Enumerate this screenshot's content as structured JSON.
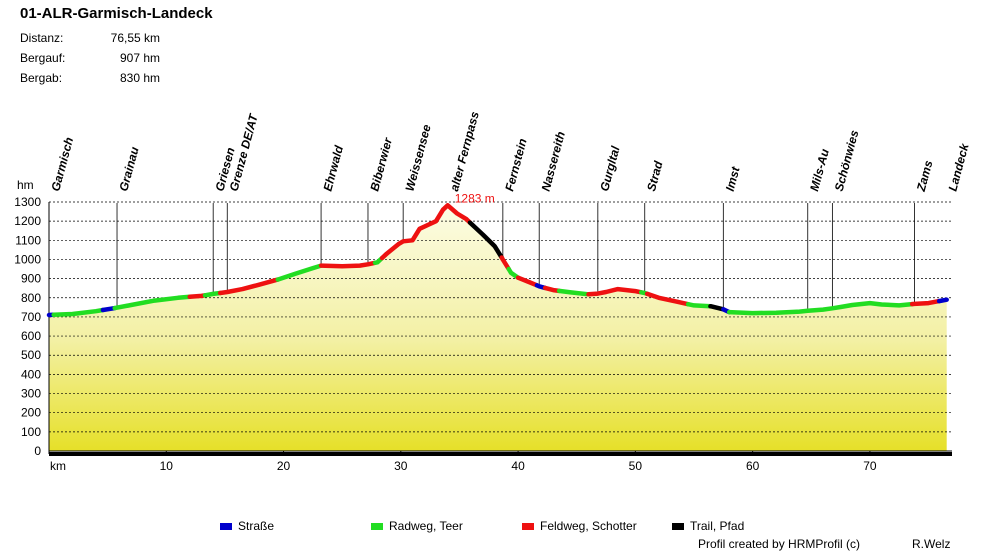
{
  "title": "01-ALR-Garmisch-Landeck",
  "stats": [
    {
      "label": "Distanz:",
      "value": "76,55 km"
    },
    {
      "label": "Bergauf:",
      "value": "907 hm"
    },
    {
      "label": "Bergab:",
      "value": "830 hm"
    }
  ],
  "legend": [
    {
      "label": "Straße",
      "color": "#0000cc"
    },
    {
      "label": "Radweg, Teer",
      "color": "#22dd22"
    },
    {
      "label": "Feldweg, Schotter",
      "color": "#ee1111"
    },
    {
      "label": "Trail, Pfad",
      "color": "#000000"
    }
  ],
  "credit": "Profil created by HRMProfil (c)",
  "author": "R.Welz",
  "chart_data": {
    "type": "area",
    "title": "",
    "xlabel": "km",
    "ylabel": "hm",
    "xlim": [
      0,
      77
    ],
    "ylim": [
      0,
      1300
    ],
    "x_ticks": [
      10,
      20,
      30,
      40,
      50,
      60,
      70
    ],
    "y_ticks": [
      0,
      100,
      200,
      300,
      400,
      500,
      600,
      700,
      800,
      900,
      1000,
      1100,
      1200,
      1300
    ],
    "grid": true,
    "legend_position": "bottom",
    "peak_label": "1283 m",
    "peak": {
      "x": 34.0,
      "y": 1283
    },
    "waypoints": [
      {
        "name": "Garmisch",
        "km": 0.0
      },
      {
        "name": "Grainau",
        "km": 5.8
      },
      {
        "name": "Griesen",
        "km": 14.0
      },
      {
        "name": "Grenze DE/AT",
        "km": 15.2
      },
      {
        "name": "Ehrwald",
        "km": 23.2
      },
      {
        "name": "Biberwier",
        "km": 27.2
      },
      {
        "name": "Weissensee",
        "km": 30.2
      },
      {
        "name": "alter Fernpass",
        "km": 34.0
      },
      {
        "name": "Fernstein",
        "km": 38.7
      },
      {
        "name": "Nassereith",
        "km": 41.8
      },
      {
        "name": "Gurgltal",
        "km": 46.8
      },
      {
        "name": "Strad",
        "km": 50.8
      },
      {
        "name": "Imst",
        "km": 57.5
      },
      {
        "name": "Mils-Au",
        "km": 64.7
      },
      {
        "name": "Schönwies",
        "km": 66.8
      },
      {
        "name": "Zams",
        "km": 73.8
      },
      {
        "name": "Landeck",
        "km": 76.5
      }
    ],
    "profile": [
      [
        0.0,
        710
      ],
      [
        2.0,
        715
      ],
      [
        4.0,
        730
      ],
      [
        5.5,
        745
      ],
      [
        7.0,
        762
      ],
      [
        9.0,
        785
      ],
      [
        11.0,
        800
      ],
      [
        13.0,
        810
      ],
      [
        14.0,
        820
      ],
      [
        15.2,
        830
      ],
      [
        16.5,
        845
      ],
      [
        18.0,
        870
      ],
      [
        19.5,
        895
      ],
      [
        21.0,
        925
      ],
      [
        22.5,
        955
      ],
      [
        23.2,
        968
      ],
      [
        25.0,
        965
      ],
      [
        26.5,
        968
      ],
      [
        27.2,
        975
      ],
      [
        28.0,
        985
      ],
      [
        28.8,
        1030
      ],
      [
        29.8,
        1080
      ],
      [
        30.2,
        1095
      ],
      [
        31.0,
        1100
      ],
      [
        31.6,
        1160
      ],
      [
        32.3,
        1180
      ],
      [
        33.0,
        1200
      ],
      [
        33.6,
        1260
      ],
      [
        34.0,
        1283
      ],
      [
        34.8,
        1240
      ],
      [
        35.6,
        1210
      ],
      [
        36.2,
        1175
      ],
      [
        37.0,
        1130
      ],
      [
        38.0,
        1070
      ],
      [
        38.7,
        1000
      ],
      [
        39.4,
        930
      ],
      [
        40.0,
        905
      ],
      [
        41.0,
        880
      ],
      [
        41.8,
        860
      ],
      [
        43.0,
        840
      ],
      [
        44.5,
        828
      ],
      [
        46.0,
        818
      ],
      [
        46.8,
        822
      ],
      [
        47.5,
        830
      ],
      [
        48.5,
        845
      ],
      [
        50.0,
        835
      ],
      [
        50.8,
        825
      ],
      [
        52.0,
        800
      ],
      [
        53.5,
        780
      ],
      [
        55.0,
        760
      ],
      [
        56.5,
        755
      ],
      [
        57.5,
        740
      ],
      [
        58.0,
        725
      ],
      [
        60.0,
        720
      ],
      [
        62.0,
        722
      ],
      [
        64.0,
        728
      ],
      [
        64.7,
        732
      ],
      [
        66.0,
        738
      ],
      [
        66.8,
        745
      ],
      [
        67.5,
        752
      ],
      [
        68.5,
        762
      ],
      [
        70.0,
        772
      ],
      [
        71.0,
        765
      ],
      [
        72.5,
        760
      ],
      [
        73.8,
        768
      ],
      [
        75.0,
        772
      ],
      [
        76.55,
        790
      ]
    ],
    "segments": [
      {
        "type": "Straße",
        "from": 0.0,
        "to": 0.4
      },
      {
        "type": "Radweg, Teer",
        "from": 0.4,
        "to": 4.6
      },
      {
        "type": "Straße",
        "from": 4.6,
        "to": 5.6
      },
      {
        "type": "Radweg, Teer",
        "from": 5.6,
        "to": 12.0
      },
      {
        "type": "Feldweg, Schotter",
        "from": 12.0,
        "to": 13.3
      },
      {
        "type": "Radweg, Teer",
        "from": 13.3,
        "to": 14.6
      },
      {
        "type": "Feldweg, Schotter",
        "from": 14.6,
        "to": 19.5
      },
      {
        "type": "Radweg, Teer",
        "from": 19.5,
        "to": 23.2
      },
      {
        "type": "Feldweg, Schotter",
        "from": 23.2,
        "to": 27.8
      },
      {
        "type": "Radweg, Teer",
        "from": 27.8,
        "to": 28.4
      },
      {
        "type": "Feldweg, Schotter",
        "from": 28.4,
        "to": 35.9
      },
      {
        "type": "Trail, Pfad",
        "from": 35.9,
        "to": 38.6
      },
      {
        "type": "Feldweg, Schotter",
        "from": 38.6,
        "to": 39.2
      },
      {
        "type": "Radweg, Teer",
        "from": 39.2,
        "to": 40.0
      },
      {
        "type": "Feldweg, Schotter",
        "from": 40.0,
        "to": 41.6
      },
      {
        "type": "Straße",
        "from": 41.6,
        "to": 42.3
      },
      {
        "type": "Feldweg, Schotter",
        "from": 42.3,
        "to": 43.5
      },
      {
        "type": "Radweg, Teer",
        "from": 43.5,
        "to": 46.0
      },
      {
        "type": "Feldweg, Schotter",
        "from": 46.0,
        "to": 50.5
      },
      {
        "type": "Radweg, Teer",
        "from": 50.5,
        "to": 51.0
      },
      {
        "type": "Feldweg, Schotter",
        "from": 51.0,
        "to": 54.5
      },
      {
        "type": "Radweg, Teer",
        "from": 54.5,
        "to": 56.4
      },
      {
        "type": "Trail, Pfad",
        "from": 56.4,
        "to": 57.5
      },
      {
        "type": "Straße",
        "from": 57.5,
        "to": 58.0
      },
      {
        "type": "Radweg, Teer",
        "from": 58.0,
        "to": 73.6
      },
      {
        "type": "Feldweg, Schotter",
        "from": 73.6,
        "to": 75.9
      },
      {
        "type": "Straße",
        "from": 75.9,
        "to": 76.55
      }
    ]
  }
}
